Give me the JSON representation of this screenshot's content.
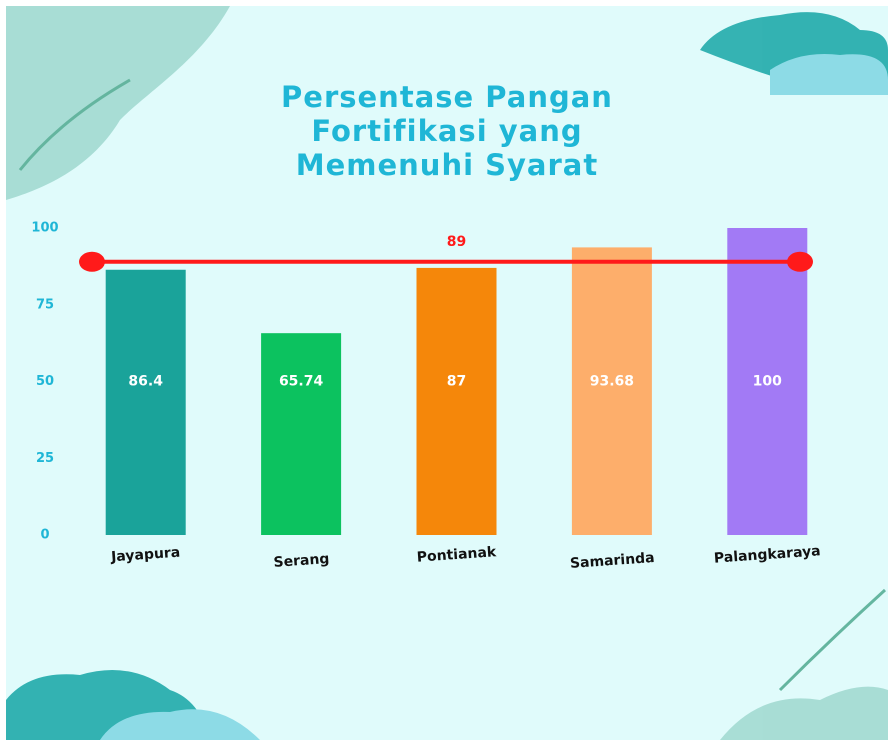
{
  "chart_data": {
    "type": "bar",
    "title": "Persentase Pangan Fortifikasi yang Memenuhi Syarat",
    "categories": [
      "Jayapura",
      "Serang",
      "Pontianak",
      "Samarinda",
      "Palangkaraya"
    ],
    "values": [
      86.4,
      65.74,
      87,
      93.68,
      100
    ],
    "colors": [
      "#1aa39a",
      "#0cc25f",
      "#f5870a",
      "#fdae6b",
      "#a27af5"
    ],
    "ylim": [
      0,
      100
    ],
    "yticks": [
      0,
      25,
      50,
      75,
      100
    ],
    "reference_line": {
      "value": 89,
      "color": "#ff1a1a"
    }
  }
}
